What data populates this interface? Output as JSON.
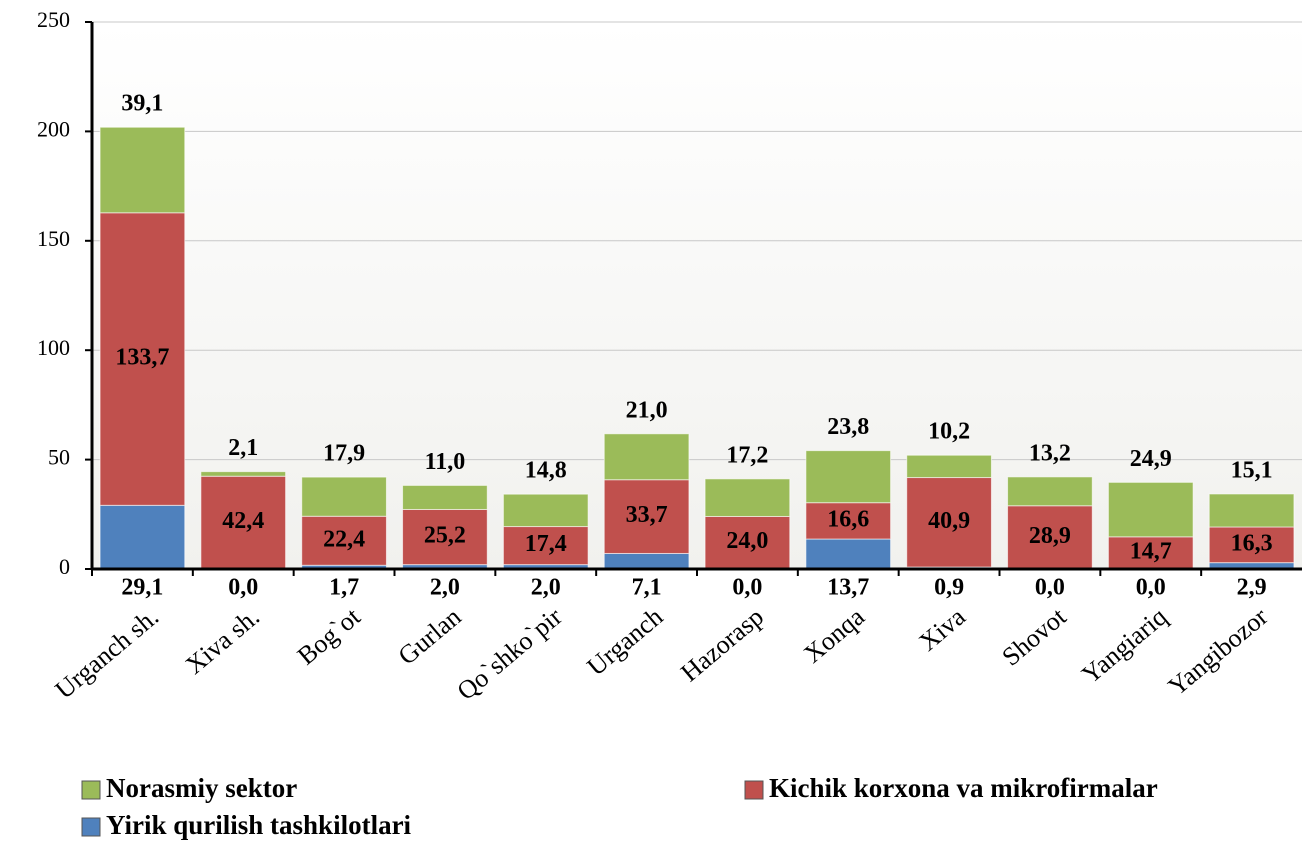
{
  "chart_data": {
    "type": "stacked_bar",
    "categories": [
      "Urganch sh.",
      "Xiva sh.",
      "Bog`ot",
      "Gurlan",
      "Qo`shko`pir",
      "Urganch",
      "Hazorasp",
      "Xonqa",
      "Xiva",
      "Shovot",
      "Yangiariq",
      "Yangibozor"
    ],
    "series": [
      {
        "name": "Yirik qurilish tashkilotlari",
        "color": "#4f81bd",
        "values": [
          29.1,
          0.0,
          1.7,
          2.0,
          2.0,
          7.1,
          0.0,
          13.7,
          0.9,
          0.0,
          0.0,
          2.9
        ],
        "value_labels": [
          "29,1",
          "0,0",
          "1,7",
          "2,0",
          "2,0",
          "7,1",
          "0,0",
          "13,7",
          "0,9",
          "0,0",
          "0,0",
          "2,9"
        ]
      },
      {
        "name": "Kichik korxona va mikrofirmalar",
        "color": "#c0504d",
        "values": [
          133.7,
          42.4,
          22.4,
          25.2,
          17.4,
          33.7,
          24.0,
          16.6,
          40.9,
          28.9,
          14.7,
          16.3
        ],
        "value_labels": [
          "133,7",
          "42,4",
          "22,4",
          "25,2",
          "17,4",
          "33,7",
          "24,0",
          "16,6",
          "40,9",
          "28,9",
          "14,7",
          "16,3"
        ]
      },
      {
        "name": "Norasmiy sektor",
        "color": "#9bbb59",
        "values": [
          39.1,
          2.1,
          17.9,
          11.0,
          14.8,
          21.0,
          17.2,
          23.8,
          10.2,
          13.2,
          24.9,
          15.1
        ],
        "value_labels": [
          "39,1",
          "2,1",
          "17,9",
          "11,0",
          "14,8",
          "21,0",
          "17,2",
          "23,8",
          "10,2",
          "13,2",
          "24,9",
          "15,1"
        ]
      }
    ],
    "ylim": [
      0,
      250
    ],
    "yticks": [
      0,
      50,
      100,
      150,
      200,
      250
    ],
    "grid": true,
    "legend": "bottom"
  }
}
